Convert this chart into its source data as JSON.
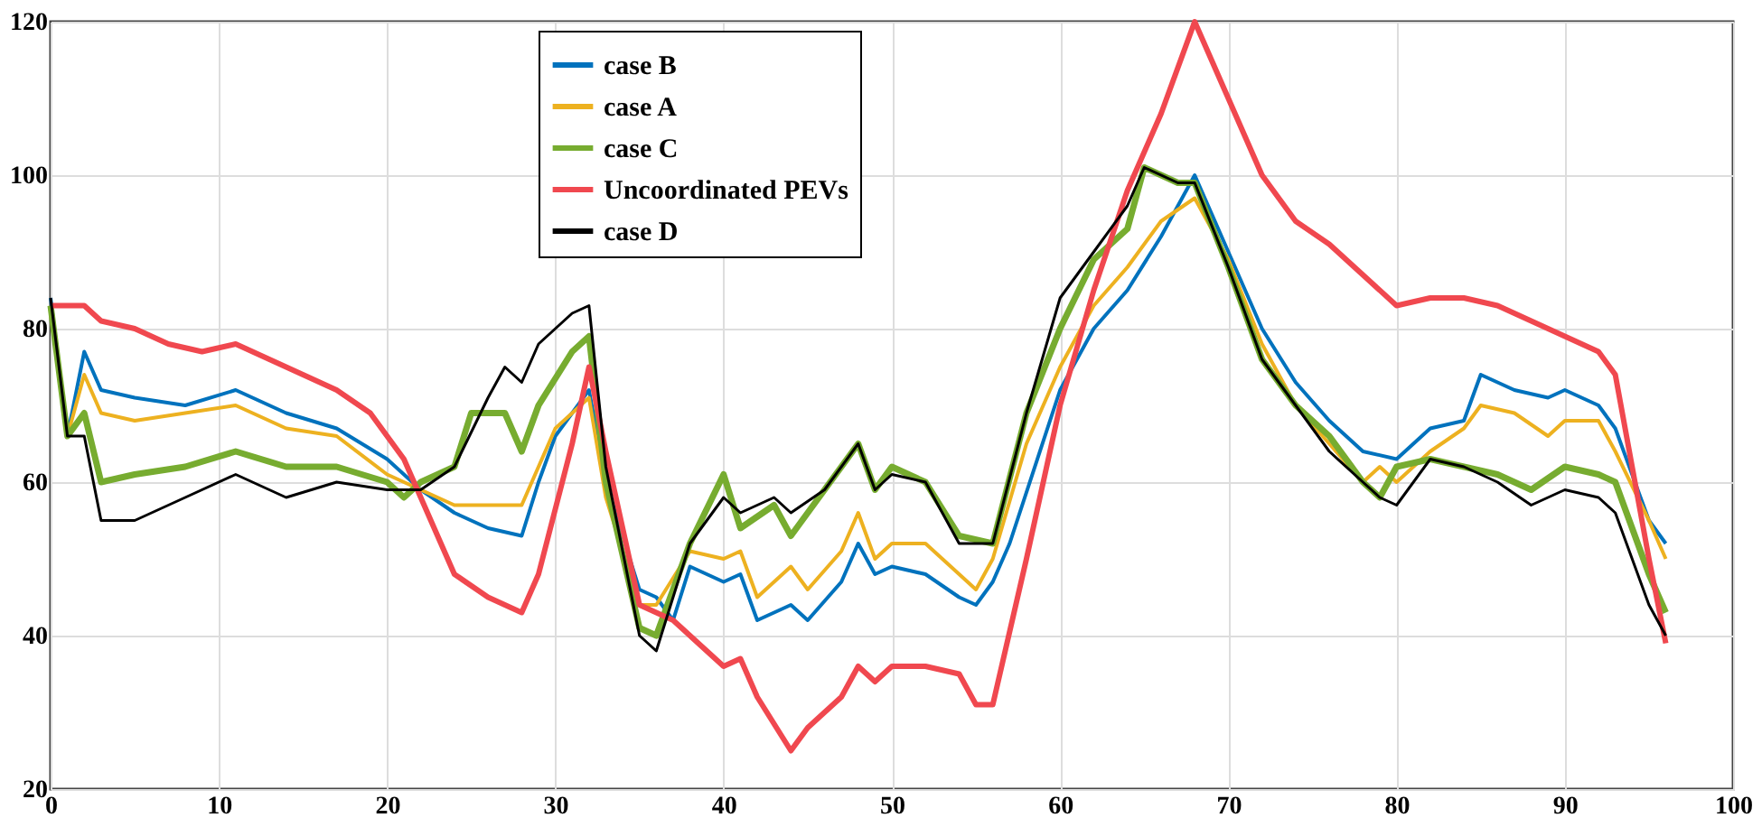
{
  "chart_data": {
    "type": "line",
    "xlim": [
      0,
      100
    ],
    "xticks": [
      0,
      10,
      20,
      30,
      40,
      50,
      60,
      70,
      80,
      90,
      100
    ],
    "ylim": [
      20,
      120
    ],
    "yticks": [
      20,
      40,
      60,
      80,
      100,
      120
    ],
    "grid": true,
    "legend": "top",
    "line_style": "solid",
    "marker": "none",
    "series": [
      {
        "name": "case B",
        "color": "#0072bd",
        "x": [
          0,
          1,
          2,
          3,
          5,
          8,
          11,
          14,
          17,
          20,
          22,
          24,
          26,
          28,
          29,
          30,
          32,
          33,
          35,
          36,
          37,
          38,
          40,
          41,
          42,
          44,
          45,
          47,
          48,
          49,
          50,
          52,
          54,
          55,
          56,
          57,
          60,
          62,
          64,
          66,
          68,
          70,
          72,
          74,
          76,
          78,
          80,
          82,
          84,
          85,
          87,
          89,
          90,
          92,
          93,
          95,
          96
        ],
        "values": [
          84,
          66,
          77,
          72,
          71,
          70,
          72,
          69,
          67,
          63,
          59,
          56,
          54,
          53,
          60,
          66,
          72,
          60,
          46,
          45,
          42,
          49,
          47,
          48,
          42,
          44,
          42,
          47,
          52,
          48,
          49,
          48,
          45,
          44,
          47,
          52,
          72,
          80,
          85,
          92,
          100,
          90,
          80,
          73,
          68,
          64,
          63,
          67,
          68,
          74,
          72,
          71,
          72,
          70,
          67,
          55,
          52
        ]
      },
      {
        "name": "case A",
        "color": "#edb120",
        "x": [
          0,
          1,
          2,
          3,
          5,
          8,
          11,
          14,
          17,
          20,
          22,
          24,
          26,
          28,
          29,
          30,
          32,
          33,
          35,
          36,
          38,
          40,
          41,
          42,
          44,
          45,
          47,
          48,
          49,
          50,
          52,
          54,
          55,
          56,
          58,
          60,
          62,
          64,
          66,
          68,
          70,
          72,
          74,
          76,
          78,
          79,
          80,
          82,
          84,
          85,
          87,
          89,
          90,
          92,
          93,
          95,
          96
        ],
        "values": [
          82,
          66,
          74,
          69,
          68,
          69,
          70,
          67,
          66,
          61,
          59,
          57,
          57,
          57,
          62,
          67,
          71,
          58,
          44,
          44,
          51,
          50,
          51,
          45,
          49,
          46,
          51,
          56,
          50,
          52,
          52,
          48,
          46,
          50,
          65,
          75,
          83,
          88,
          94,
          97,
          89,
          78,
          70,
          65,
          60,
          62,
          60,
          64,
          67,
          70,
          69,
          66,
          68,
          68,
          64,
          55,
          50
        ]
      },
      {
        "name": "case C",
        "color": "#77ac30",
        "x": [
          0,
          1,
          2,
          3,
          5,
          8,
          11,
          14,
          17,
          20,
          21,
          22,
          24,
          25,
          27,
          28,
          29,
          31,
          32,
          33,
          35,
          36,
          38,
          40,
          41,
          43,
          44,
          46,
          48,
          49,
          50,
          52,
          54,
          56,
          58,
          60,
          62,
          64,
          65,
          67,
          68,
          70,
          72,
          74,
          76,
          78,
          79,
          80,
          82,
          84,
          86,
          88,
          90,
          92,
          93,
          95,
          96
        ],
        "values": [
          83,
          66,
          69,
          60,
          61,
          62,
          64,
          62,
          62,
          60,
          58,
          60,
          62,
          69,
          69,
          64,
          70,
          77,
          79,
          60,
          41,
          40,
          52,
          61,
          54,
          57,
          53,
          59,
          65,
          59,
          62,
          60,
          53,
          52,
          69,
          80,
          89,
          93,
          101,
          99,
          99,
          88,
          76,
          70,
          66,
          60,
          58,
          62,
          63,
          62,
          61,
          59,
          62,
          61,
          60,
          48,
          43
        ]
      },
      {
        "name": "Uncoordinated PEVs",
        "color": "#f0484f",
        "x": [
          0,
          2,
          3,
          5,
          7,
          9,
          11,
          13,
          15,
          17,
          19,
          21,
          22,
          24,
          26,
          28,
          29,
          31,
          32,
          33,
          35,
          37,
          38,
          40,
          41,
          42,
          44,
          45,
          47,
          48,
          49,
          50,
          52,
          54,
          55,
          56,
          58,
          60,
          62,
          64,
          66,
          68,
          70,
          72,
          74,
          76,
          78,
          80,
          82,
          84,
          86,
          88,
          90,
          92,
          93,
          95,
          96
        ],
        "values": [
          83,
          83,
          81,
          80,
          78,
          77,
          78,
          76,
          74,
          72,
          69,
          63,
          58,
          48,
          45,
          43,
          48,
          65,
          75,
          64,
          44,
          42,
          40,
          36,
          37,
          32,
          25,
          28,
          32,
          36,
          34,
          36,
          36,
          35,
          31,
          31,
          50,
          70,
          85,
          98,
          108,
          120,
          110,
          100,
          94,
          91,
          87,
          83,
          84,
          84,
          83,
          81,
          79,
          77,
          74,
          50,
          39
        ]
      },
      {
        "name": "case D",
        "color": "#000000",
        "x": [
          0,
          1,
          2,
          3,
          5,
          8,
          11,
          14,
          17,
          20,
          22,
          24,
          26,
          27,
          28,
          29,
          31,
          32,
          33,
          35,
          36,
          38,
          40,
          41,
          43,
          44,
          46,
          48,
          49,
          50,
          52,
          54,
          56,
          58,
          60,
          62,
          64,
          65,
          67,
          68,
          70,
          72,
          74,
          76,
          78,
          79,
          80,
          82,
          84,
          86,
          88,
          90,
          92,
          93,
          95,
          96
        ],
        "values": [
          84,
          66,
          66,
          55,
          55,
          58,
          61,
          58,
          60,
          59,
          59,
          62,
          71,
          75,
          73,
          78,
          82,
          83,
          62,
          40,
          38,
          52,
          58,
          56,
          58,
          56,
          59,
          65,
          59,
          61,
          60,
          52,
          52,
          69,
          84,
          90,
          96,
          101,
          99,
          99,
          88,
          76,
          70,
          64,
          60,
          58,
          57,
          63,
          62,
          60,
          57,
          59,
          58,
          56,
          44,
          40
        ]
      }
    ]
  }
}
